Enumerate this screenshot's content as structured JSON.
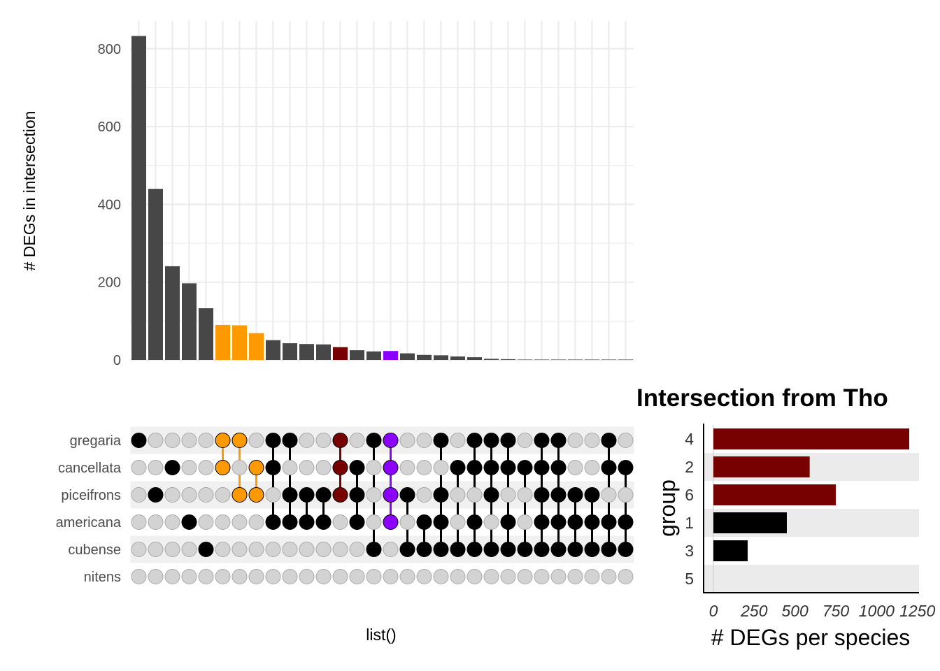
{
  "chart_data": [
    {
      "type": "bar",
      "name": "intersection-sizes",
      "ylabel": "# DEGs in intersection",
      "xlabel": "list()",
      "ylim": [
        0,
        860
      ],
      "yticks": [
        0,
        200,
        400,
        600,
        800
      ],
      "values": [
        833,
        440,
        241,
        197,
        133,
        90,
        89,
        69,
        51,
        43,
        41,
        40,
        33,
        25,
        22,
        23,
        17,
        13,
        12,
        9,
        7,
        3,
        2,
        1,
        1,
        1,
        1,
        1,
        1,
        1
      ],
      "colors": [
        "#474747",
        "#474747",
        "#474747",
        "#474747",
        "#474747",
        "#FF9900",
        "#FF9900",
        "#FF9900",
        "#474747",
        "#474747",
        "#474747",
        "#474747",
        "#770000",
        "#474747",
        "#474747",
        "#8B00FF",
        "#474747",
        "#474747",
        "#474747",
        "#474747",
        "#474747",
        "#474747",
        "#474747",
        "#474747",
        "#474747",
        "#474747",
        "#474747",
        "#474747",
        "#474747",
        "#474747"
      ],
      "grid": true
    },
    {
      "type": "table",
      "name": "set-membership-matrix",
      "sets": [
        "gregaria",
        "cancellata",
        "piceifrons",
        "americana",
        "cubense",
        "nitens"
      ],
      "membership": [
        [
          0
        ],
        [
          2
        ],
        [
          1
        ],
        [
          3
        ],
        [
          4
        ],
        [
          0,
          1
        ],
        [
          0,
          2
        ],
        [
          1,
          2
        ],
        [
          0,
          1,
          3
        ],
        [
          0,
          2,
          3
        ],
        [
          2,
          3
        ],
        [
          2,
          3
        ],
        [
          0,
          1,
          2
        ],
        [
          1,
          2,
          3
        ],
        [
          0,
          4
        ],
        [
          0,
          1,
          2,
          3
        ],
        [
          2,
          4
        ],
        [
          3,
          4
        ],
        [
          0,
          2,
          3,
          4
        ],
        [
          1,
          4
        ],
        [
          0,
          1,
          3,
          4
        ],
        [
          0,
          1,
          2,
          4
        ],
        [
          0,
          1,
          3,
          4
        ],
        [
          1,
          4
        ],
        [
          0,
          1,
          2,
          3,
          4
        ],
        [
          0,
          1,
          2,
          3,
          4
        ],
        [
          2,
          3,
          4
        ],
        [
          2,
          3,
          4
        ],
        [
          0,
          1,
          3,
          4
        ],
        [
          1,
          3,
          4
        ]
      ],
      "dot_colors": {
        "5": "#FF9900",
        "6": "#FF9900",
        "7": "#FF9900",
        "12": "#770000",
        "15": "#8B00FF"
      }
    },
    {
      "type": "bar",
      "name": "degs-per-species",
      "orientation": "horizontal",
      "title": "Intersection from Tho",
      "xlabel": "# DEGs per species",
      "ylabel": "group",
      "categories": [
        "4",
        "2",
        "6",
        "1",
        "3",
        "5"
      ],
      "values": [
        1200,
        590,
        750,
        450,
        210,
        0
      ],
      "colors": [
        "#770000",
        "#770000",
        "#770000",
        "#000000",
        "#000000",
        "#000000"
      ],
      "xlim": [
        -60,
        1260
      ],
      "xticks": [
        0,
        250,
        500,
        750,
        1000,
        1250
      ],
      "xtick_labels": [
        "0",
        "250",
        "500",
        "750",
        "1000",
        "1250"
      ]
    }
  ]
}
